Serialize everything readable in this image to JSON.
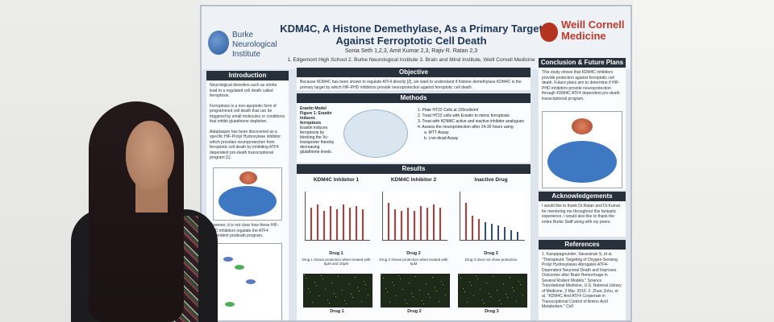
{
  "poster": {
    "title": "KDM4C, A Histone Demethylase, As a Primary Target Against Ferroptotic Cell Death",
    "authors": "Sonia Seth 1,2,3, Amit Kumar 2,3, Rajiv R. Ratan 2,3",
    "affiliations": "1. Edgemont High School 2. Burke Neurological Institute 3. Brain and Mind Institute, Weill Cornell Medicine",
    "logo_left": "Burke Neurological Institute",
    "logo_right": "Weill Cornell Medicine",
    "introduction": {
      "heading": "Introduction",
      "p1": "Neurological disorders such as stroke lead to a regulated cell death called ferroptosis.",
      "p2": "Ferroptosis is a non-apoptotic form of programmed cell death that can be triggered by small molecules or conditions that inhibit glutathione depletion.",
      "p3": "Adaptaquin has been discovered as a specific HIF-Prolyl Hydroxylase inhibitor which provides neuroprotection from ferroptotic cell death by inhibiting ATF4 dependent pro-death transcriptional program [1].",
      "p4": "However, it is not clear how these HIF-PHD inhibitors regulate the ATF4 dependent prodeath program."
    },
    "objective": {
      "heading": "Objective",
      "text": "Because KDM4C has been shown to regulate ATF4 directly [2], we want to understand if histone demethylase KDM4C is the primary target by which HIF-PHD inhibitors provide neuroprotection against ferroptotic cell death."
    },
    "methods": {
      "heading": "Methods",
      "fig_title": "Erastin Model",
      "fig_caption": "Figure 1: Erastin induces ferroptosis",
      "fig_text": "Erastin induces ferroptosis by blocking the Xc- transporter thereby decreasing glutathione levels.",
      "steps": [
        "1. Plate HT22 Cells at 100cells/ml",
        "2. Treat HT22 cells with Erastin to mimic ferroptosis",
        "3. Treat with KDM4C active and inactive inhibitor analogues",
        "4. Assess the neuroprotection after 24-30 hours using",
        "a. MTT Assay",
        "b. Live-dead Assay"
      ]
    },
    "results": {
      "heading": "Results",
      "charts": [
        {
          "title": "KDM4C Inhibitor 1",
          "drug": "Drug 1",
          "caption": "Drug 1 shows protection when treated with 5μM and 10μM"
        },
        {
          "title": "KDM4C Inhibitor 2",
          "drug": "Drug 2",
          "caption": "Drug 2 shows protection when treated with 5μM"
        },
        {
          "title": "Inactive Drug",
          "drug": "Drug 3",
          "caption": "Drug 3 does not show protection"
        }
      ],
      "micro_labels": [
        "Drug 1",
        "Drug 2",
        "Drug 3"
      ]
    },
    "conclusion": {
      "heading": "Conclusion & Future Plans",
      "text": "This study shows that KDM4C inhibitors provide protection against ferroptotic cell death. Future plans aim to determine if HIF-PHD inhibitors provide neuroprotection through KDM4C ATF4 dependent pro-death transcriptional program."
    },
    "acknowledgements": {
      "heading": "Acknowledgements",
      "text": "I would like to thank Dr.Ratan and Dr.Kumar for mentoring me throughout this fantastic experience. I would also like to thank the entire Burke Staff along with my peers."
    },
    "references": {
      "heading": "References",
      "text": "1. Karuppagounder, Saravanan S, et al. \"Therapeutic Targeting of Oxygen-Sensing Prolyl Hydroxylases Abrogates ATF4-Dependent Neuronal Death and Improves Outcomes after Brain Hemorrhage in Several Rodent Models.\" Science Translational Medicine, U.S. National Library of Medicine, 2 Mar. 2016. 2. Zhao, Erhu, et al. \"KDM4C And ATF4 Cooperate in Transcriptional Control of Amino Acid Metabolism.\" Cell"
    }
  }
}
